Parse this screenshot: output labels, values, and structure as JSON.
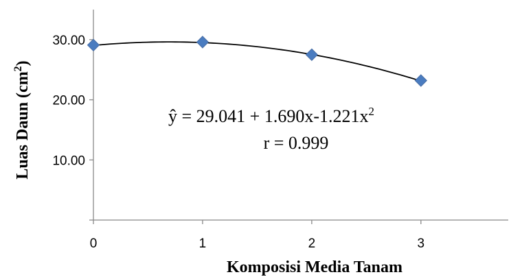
{
  "chart_data": {
    "type": "scatter",
    "xlabel": "Komposisi Media Tanam",
    "ylabel_main": "Luas Daun (cm",
    "ylabel_sup": "2",
    "ylabel_close": ")",
    "x_ticks": [
      "0",
      "1",
      "2",
      "3"
    ],
    "y_ticks": [
      "10.00",
      "20.00",
      "30.00"
    ],
    "xlim": [
      0,
      3.8
    ],
    "ylim": [
      0,
      35
    ],
    "grid": false,
    "legend": "none",
    "series": [
      {
        "x": [
          0,
          1,
          2,
          3
        ],
        "y": [
          29.1,
          29.6,
          27.5,
          23.2
        ],
        "color": "#4a7cc0"
      }
    ],
    "trendline": {
      "type": "polynomial",
      "coefficients": [
        29.041,
        1.69,
        -1.221
      ],
      "color": "#000000"
    },
    "annotations": {
      "equation_main": "ŷ =  29.041 + 1.690x-1.221x",
      "equation_sup": "2",
      "r_value": "r = 0.999"
    }
  }
}
